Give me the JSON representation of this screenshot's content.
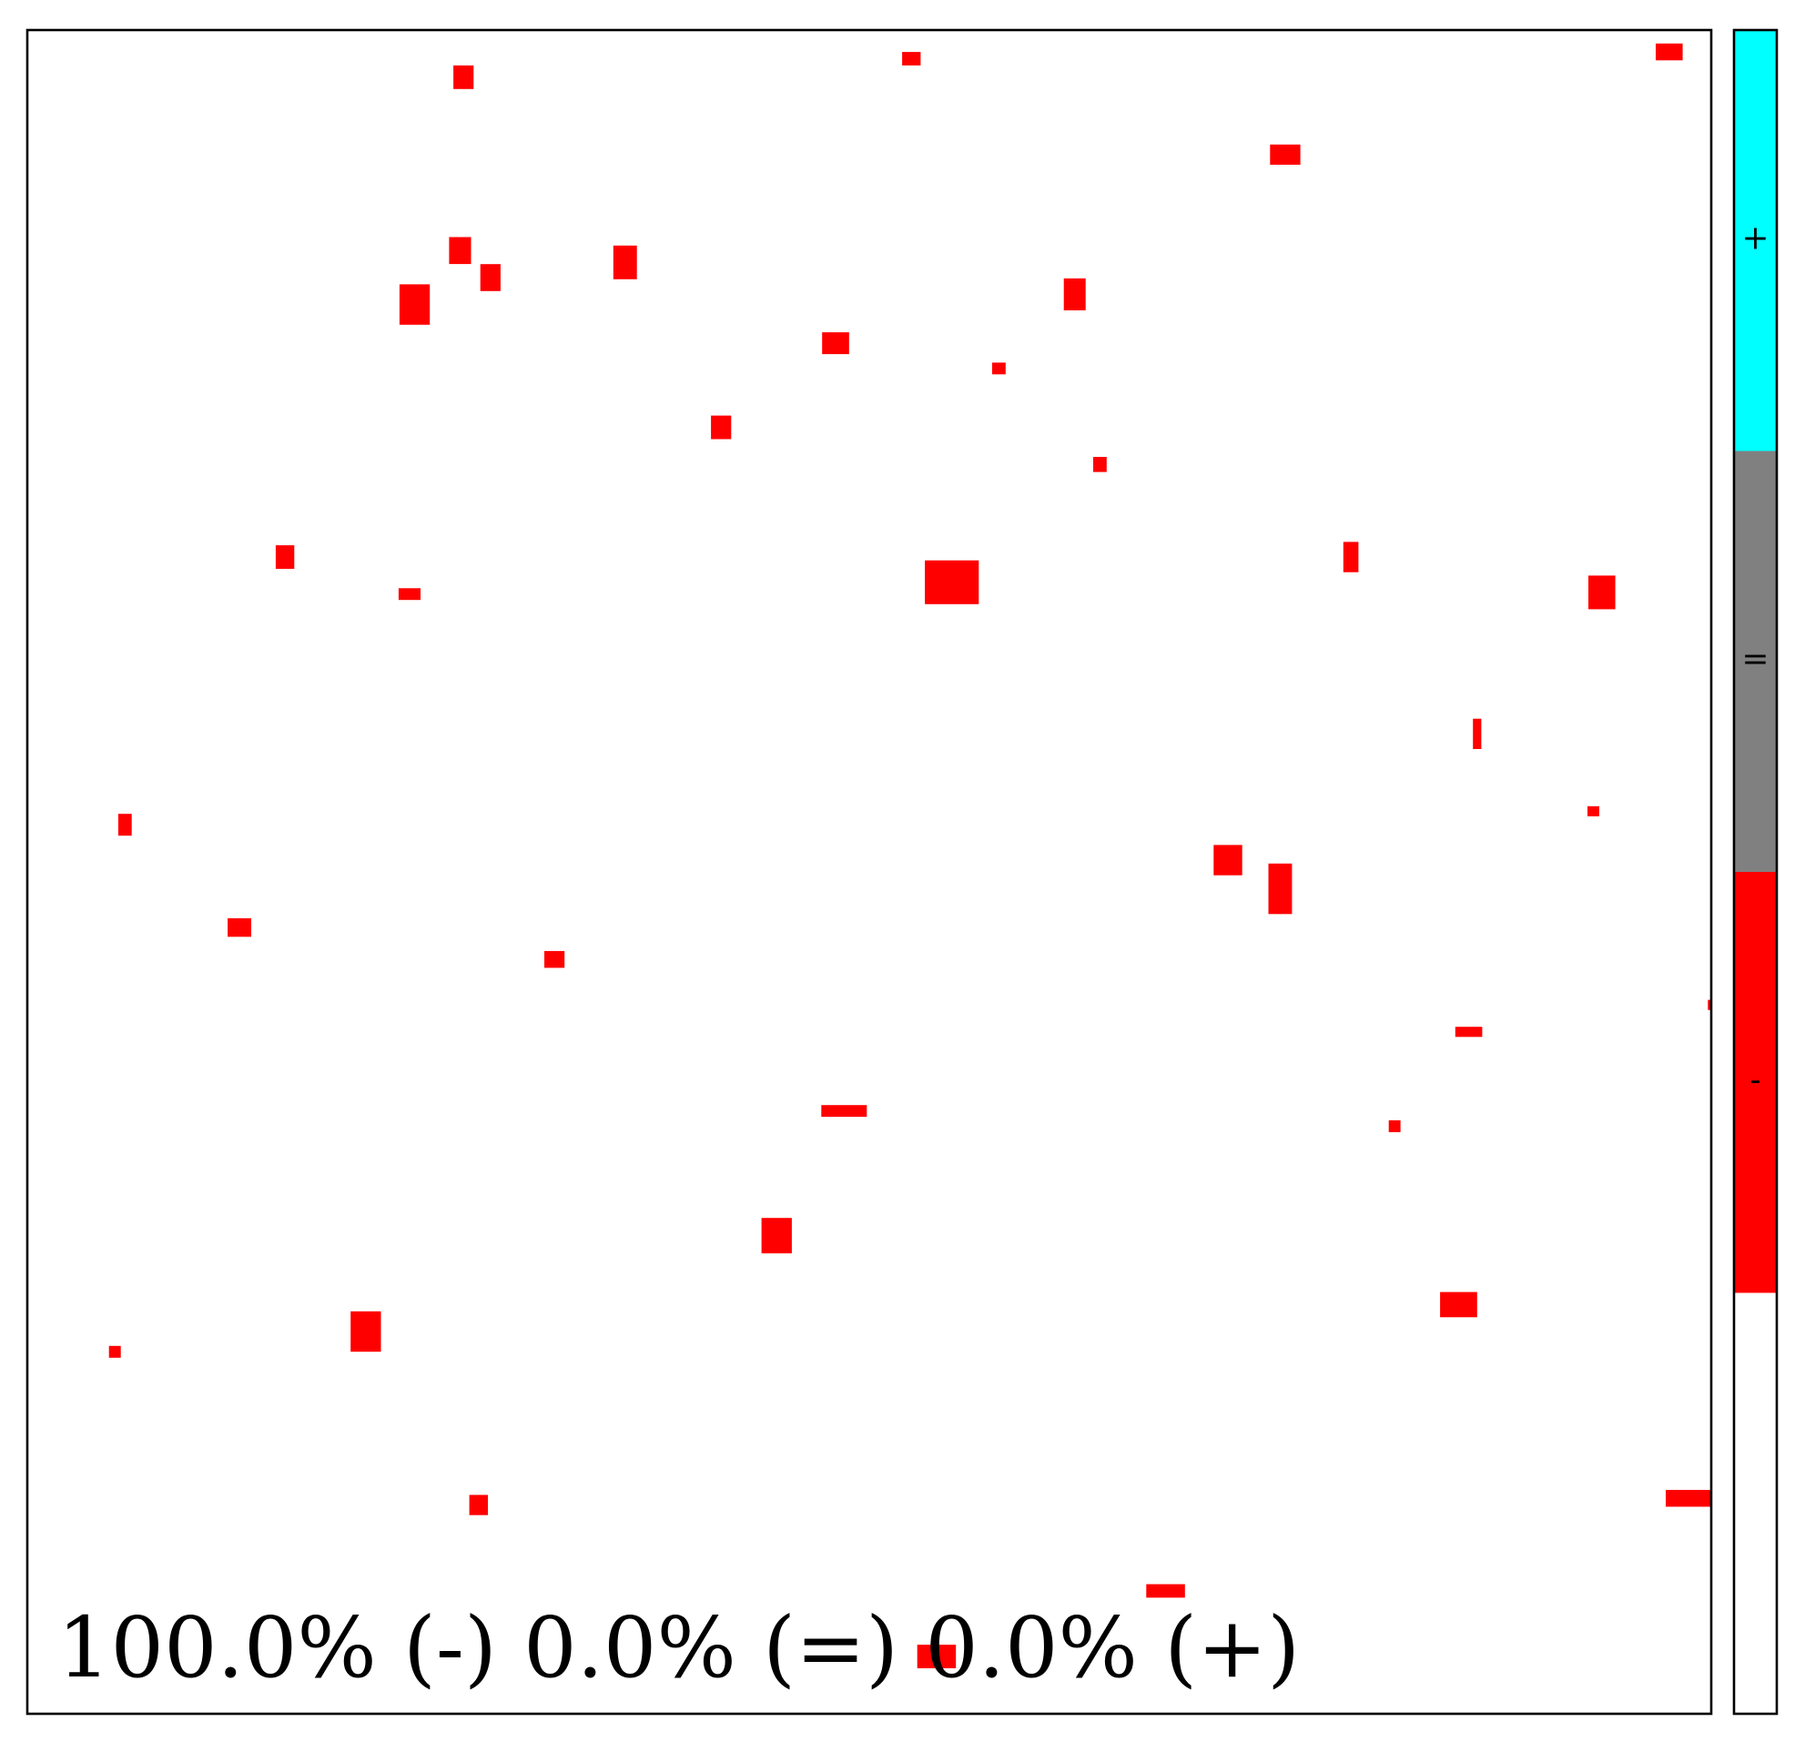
{
  "chart_data": {
    "type": "heatmap",
    "title": "",
    "xlabel": "",
    "ylabel": "",
    "grid": false,
    "annotation": {
      "text": "100.0% (-) 0.0% (=) 0.0% (+)",
      "placement": "bottom-left inside plot"
    },
    "summary": [
      {
        "category": "-",
        "percent": 100.0
      },
      {
        "category": "=",
        "percent": 0.0
      },
      {
        "category": "+",
        "percent": 0.0
      }
    ],
    "colorbar": {
      "placement": "right",
      "segments": [
        {
          "label": "+",
          "color": "#00ffff"
        },
        {
          "label": "=",
          "color": "#808080"
        },
        {
          "label": "-",
          "color": "#ff0000"
        },
        {
          "label": "",
          "color": "#ffffff"
        }
      ]
    },
    "field": {
      "extent": [
        0,
        1,
        0,
        1
      ],
      "background_color": "#ffffff",
      "region_color": "#ff0000",
      "regions": [
        {
          "x": 0.259,
          "y": 0.972,
          "w": 0.012,
          "h": 0.014
        },
        {
          "x": 0.525,
          "y": 0.983,
          "w": 0.011,
          "h": 0.008
        },
        {
          "x": 0.975,
          "y": 0.987,
          "w": 0.016,
          "h": 0.01
        },
        {
          "x": 0.747,
          "y": 0.926,
          "w": 0.018,
          "h": 0.012
        },
        {
          "x": 0.257,
          "y": 0.869,
          "w": 0.013,
          "h": 0.016
        },
        {
          "x": 0.275,
          "y": 0.853,
          "w": 0.012,
          "h": 0.016
        },
        {
          "x": 0.23,
          "y": 0.837,
          "w": 0.018,
          "h": 0.024
        },
        {
          "x": 0.355,
          "y": 0.862,
          "w": 0.014,
          "h": 0.02
        },
        {
          "x": 0.622,
          "y": 0.843,
          "w": 0.013,
          "h": 0.019
        },
        {
          "x": 0.48,
          "y": 0.814,
          "w": 0.016,
          "h": 0.013
        },
        {
          "x": 0.577,
          "y": 0.799,
          "w": 0.008,
          "h": 0.007
        },
        {
          "x": 0.412,
          "y": 0.764,
          "w": 0.012,
          "h": 0.014
        },
        {
          "x": 0.637,
          "y": 0.742,
          "w": 0.008,
          "h": 0.009
        },
        {
          "x": 0.153,
          "y": 0.687,
          "w": 0.011,
          "h": 0.014
        },
        {
          "x": 0.227,
          "y": 0.665,
          "w": 0.013,
          "h": 0.007
        },
        {
          "x": 0.549,
          "y": 0.672,
          "w": 0.032,
          "h": 0.026
        },
        {
          "x": 0.786,
          "y": 0.687,
          "w": 0.009,
          "h": 0.018
        },
        {
          "x": 0.935,
          "y": 0.666,
          "w": 0.016,
          "h": 0.02
        },
        {
          "x": 0.861,
          "y": 0.582,
          "w": 0.005,
          "h": 0.018
        },
        {
          "x": 0.058,
          "y": 0.528,
          "w": 0.008,
          "h": 0.013
        },
        {
          "x": 0.93,
          "y": 0.536,
          "w": 0.007,
          "h": 0.006
        },
        {
          "x": 0.713,
          "y": 0.507,
          "w": 0.017,
          "h": 0.018
        },
        {
          "x": 0.744,
          "y": 0.49,
          "w": 0.014,
          "h": 0.03
        },
        {
          "x": 0.126,
          "y": 0.467,
          "w": 0.014,
          "h": 0.011
        },
        {
          "x": 0.313,
          "y": 0.448,
          "w": 0.012,
          "h": 0.01
        },
        {
          "x": 0.856,
          "y": 0.405,
          "w": 0.016,
          "h": 0.006
        },
        {
          "x": 1.004,
          "y": 0.421,
          "w": 0.012,
          "h": 0.006
        },
        {
          "x": 0.485,
          "y": 0.358,
          "w": 0.027,
          "h": 0.007
        },
        {
          "x": 0.812,
          "y": 0.349,
          "w": 0.007,
          "h": 0.007
        },
        {
          "x": 0.445,
          "y": 0.284,
          "w": 0.018,
          "h": 0.021
        },
        {
          "x": 0.85,
          "y": 0.243,
          "w": 0.022,
          "h": 0.015
        },
        {
          "x": 0.201,
          "y": 0.227,
          "w": 0.018,
          "h": 0.024
        },
        {
          "x": 0.052,
          "y": 0.215,
          "w": 0.007,
          "h": 0.007
        },
        {
          "x": 0.268,
          "y": 0.124,
          "w": 0.011,
          "h": 0.012
        },
        {
          "x": 0.988,
          "y": 0.128,
          "w": 0.03,
          "h": 0.01
        },
        {
          "x": 0.676,
          "y": 0.073,
          "w": 0.023,
          "h": 0.008
        },
        {
          "x": 0.54,
          "y": 0.034,
          "w": 0.023,
          "h": 0.014
        }
      ]
    }
  }
}
